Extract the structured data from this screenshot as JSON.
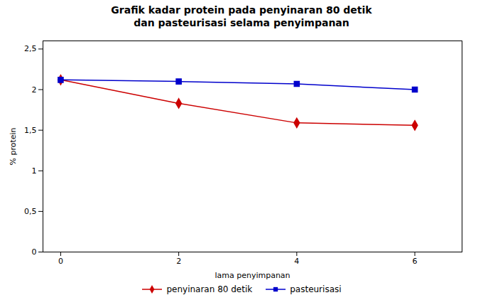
{
  "chart_data": {
    "type": "line",
    "title": "Grafik kadar protein pada penyinaran 80 detik\ndan pasteurisasi selama penyimpanan",
    "x_label": "lama penyimpanan",
    "y_label": "% protein",
    "x": [
      0,
      2,
      4,
      6
    ],
    "series": [
      {
        "name": "penyinaran 80 detik",
        "color": "#cc0000",
        "marker": "diamond",
        "values": [
          2.12,
          1.83,
          1.59,
          1.56
        ]
      },
      {
        "name": "pasteurisasi",
        "color": "#0000cc",
        "marker": "square",
        "values": [
          2.12,
          2.1,
          2.07,
          2.0
        ]
      }
    ],
    "xlim": [
      -0.3,
      6.8
    ],
    "ylim": [
      0,
      2.6
    ],
    "xticks": [
      0,
      2,
      4,
      6
    ],
    "yticks": [
      0,
      {
        "value": 0.5,
        "label": "0,5"
      },
      1,
      {
        "value": 1.5,
        "label": "1,5"
      },
      2,
      {
        "value": 2.5,
        "label": "2,5"
      }
    ],
    "legend": "bottom",
    "grid": false
  }
}
